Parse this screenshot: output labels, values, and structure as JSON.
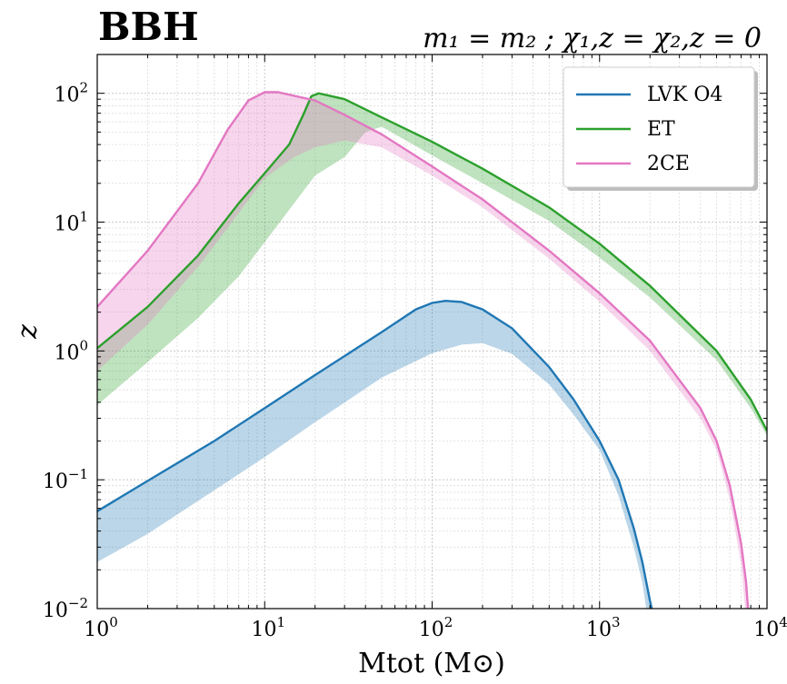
{
  "chart_data": {
    "type": "area",
    "title": "BBH",
    "subtitle": "m₁ = m₂ ; χ₁,z = χ₂,z = 0",
    "xlabel": "Mtot (M⊙)",
    "ylabel": "z",
    "xscale": "log",
    "yscale": "log",
    "xlim": [
      1,
      10000
    ],
    "ylim": [
      0.01,
      200
    ],
    "x_ticks": [
      {
        "value": 1,
        "base": "10",
        "exp": "0"
      },
      {
        "value": 10,
        "base": "10",
        "exp": "1"
      },
      {
        "value": 100,
        "base": "10",
        "exp": "2"
      },
      {
        "value": 1000,
        "base": "10",
        "exp": "3"
      },
      {
        "value": 10000,
        "base": "10",
        "exp": "4"
      }
    ],
    "y_ticks": [
      {
        "value": 0.01,
        "base": "10",
        "exp": "−2"
      },
      {
        "value": 0.1,
        "base": "10",
        "exp": "−1"
      },
      {
        "value": 1,
        "base": "10",
        "exp": "0"
      },
      {
        "value": 10,
        "base": "10",
        "exp": "1"
      },
      {
        "value": 100,
        "base": "10",
        "exp": "2"
      }
    ],
    "grid": true,
    "legend_position": "top-right",
    "series": [
      {
        "name": "LVK O4",
        "color": "#1f77b4",
        "upper": [
          [
            1,
            0.057
          ],
          [
            2,
            0.098
          ],
          [
            5,
            0.2
          ],
          [
            10,
            0.36
          ],
          [
            20,
            0.65
          ],
          [
            50,
            1.4
          ],
          [
            80,
            2.1
          ],
          [
            100,
            2.36
          ],
          [
            120,
            2.45
          ],
          [
            150,
            2.4
          ],
          [
            200,
            2.1
          ],
          [
            300,
            1.5
          ],
          [
            500,
            0.75
          ],
          [
            700,
            0.42
          ],
          [
            1000,
            0.2
          ],
          [
            1300,
            0.1
          ],
          [
            1600,
            0.042
          ],
          [
            1800,
            0.023
          ],
          [
            2000,
            0.0115
          ],
          [
            2050,
            0.01
          ]
        ],
        "lower": [
          [
            1,
            0.023
          ],
          [
            2,
            0.038
          ],
          [
            5,
            0.083
          ],
          [
            10,
            0.15
          ],
          [
            20,
            0.28
          ],
          [
            50,
            0.62
          ],
          [
            100,
            0.96
          ],
          [
            150,
            1.12
          ],
          [
            200,
            1.15
          ],
          [
            300,
            0.95
          ],
          [
            500,
            0.55
          ],
          [
            700,
            0.32
          ],
          [
            1000,
            0.17
          ],
          [
            1300,
            0.075
          ],
          [
            1600,
            0.03
          ],
          [
            1800,
            0.016
          ],
          [
            1900,
            0.01
          ]
        ]
      },
      {
        "name": "ET",
        "color": "#2ca02c",
        "upper": [
          [
            1,
            1.05
          ],
          [
            2,
            2.2
          ],
          [
            4,
            5.5
          ],
          [
            7,
            14
          ],
          [
            10,
            24
          ],
          [
            14,
            40
          ],
          [
            17,
            68
          ],
          [
            19,
            95
          ],
          [
            21,
            100
          ],
          [
            30,
            90
          ],
          [
            50,
            65
          ],
          [
            100,
            42
          ],
          [
            200,
            26
          ],
          [
            500,
            13
          ],
          [
            1000,
            6.8
          ],
          [
            2000,
            3.2
          ],
          [
            5000,
            1.0
          ],
          [
            8000,
            0.42
          ],
          [
            10000,
            0.24
          ]
        ],
        "lower": [
          [
            1,
            0.38
          ],
          [
            2,
            0.82
          ],
          [
            4,
            1.8
          ],
          [
            7,
            3.8
          ],
          [
            10,
            7
          ],
          [
            15,
            14
          ],
          [
            20,
            23
          ],
          [
            30,
            32
          ],
          [
            40,
            50
          ],
          [
            50,
            55
          ],
          [
            100,
            33
          ],
          [
            200,
            20
          ],
          [
            500,
            10.2
          ],
          [
            1000,
            5.3
          ],
          [
            2000,
            2.6
          ],
          [
            5000,
            0.85
          ],
          [
            8000,
            0.36
          ],
          [
            10000,
            0.22
          ]
        ]
      },
      {
        "name": "2CE",
        "color": "#e377c2",
        "upper": [
          [
            1,
            2.2
          ],
          [
            2,
            6
          ],
          [
            4,
            20
          ],
          [
            6,
            52
          ],
          [
            8,
            88
          ],
          [
            10,
            102
          ],
          [
            12,
            102
          ],
          [
            20,
            88
          ],
          [
            30,
            68
          ],
          [
            50,
            48
          ],
          [
            100,
            27
          ],
          [
            200,
            15
          ],
          [
            500,
            6
          ],
          [
            1000,
            2.8
          ],
          [
            2000,
            1.2
          ],
          [
            4000,
            0.36
          ],
          [
            5000,
            0.2
          ],
          [
            6000,
            0.09
          ],
          [
            7000,
            0.032
          ],
          [
            7500,
            0.016
          ],
          [
            7700,
            0.01
          ]
        ],
        "lower": [
          [
            1,
            0.7
          ],
          [
            2,
            1.6
          ],
          [
            4,
            4.5
          ],
          [
            6,
            9
          ],
          [
            10,
            22
          ],
          [
            15,
            32
          ],
          [
            20,
            38
          ],
          [
            30,
            43
          ],
          [
            50,
            38
          ],
          [
            100,
            23
          ],
          [
            200,
            13
          ],
          [
            500,
            5.2
          ],
          [
            1000,
            2.4
          ],
          [
            2000,
            1.0
          ],
          [
            4000,
            0.3
          ],
          [
            5000,
            0.17
          ],
          [
            6000,
            0.07
          ],
          [
            7000,
            0.022
          ],
          [
            7400,
            0.01
          ]
        ]
      }
    ]
  }
}
